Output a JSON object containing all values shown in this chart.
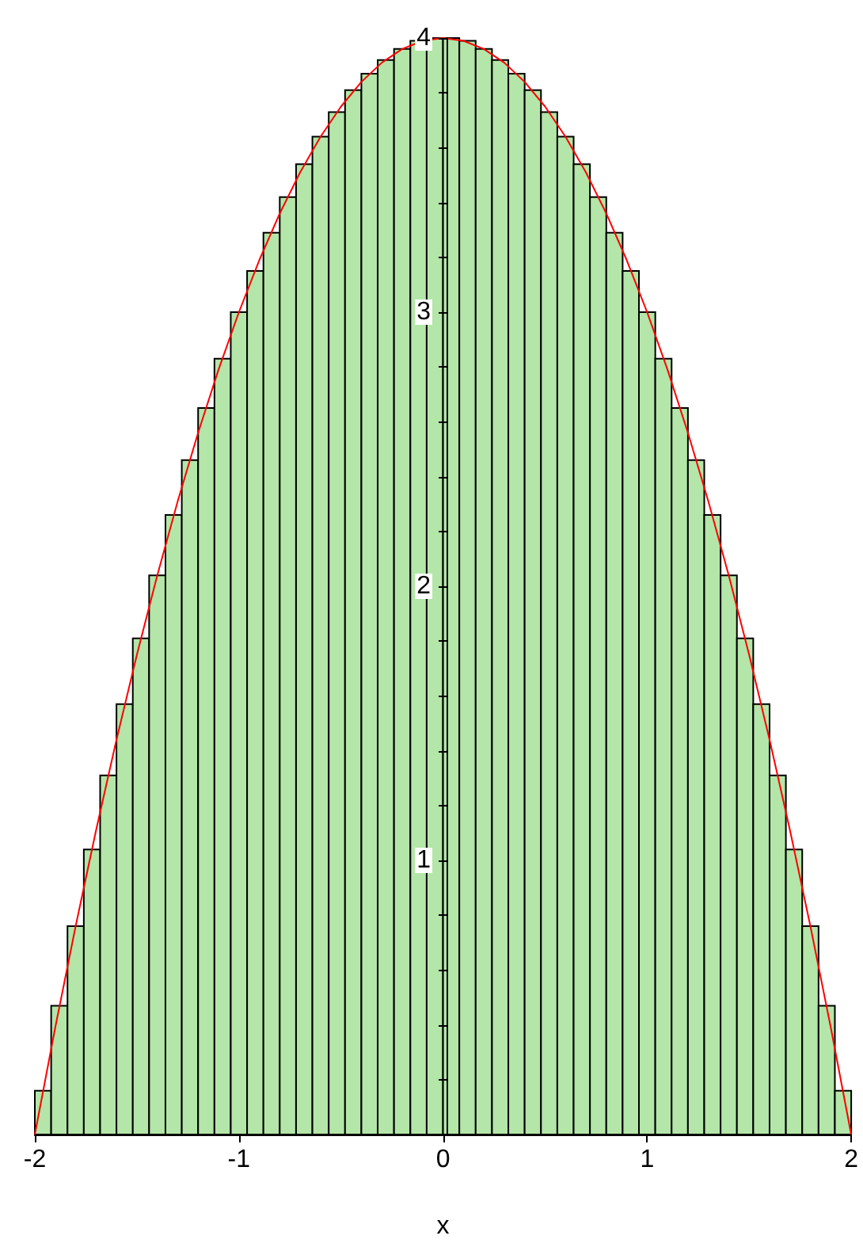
{
  "chart_data": {
    "type": "histogram",
    "xlabel": "x",
    "grid": false,
    "xlim": [
      -2,
      2
    ],
    "ylim": [
      0,
      4
    ],
    "xticks": [
      -2,
      -1,
      0,
      1,
      2
    ],
    "yticks": [
      {
        "value": 0.2,
        "label": null
      },
      {
        "value": 0.4,
        "label": null
      },
      {
        "value": 0.6,
        "label": null
      },
      {
        "value": 0.8,
        "label": null
      },
      1,
      {
        "value": 1.2,
        "label": null
      },
      {
        "value": 1.4,
        "label": null
      },
      {
        "value": 1.6,
        "label": null
      },
      {
        "value": 1.8,
        "label": null
      },
      2,
      {
        "value": 2.2,
        "label": null
      },
      {
        "value": 2.4,
        "label": null
      },
      {
        "value": 2.6,
        "label": null
      },
      {
        "value": 2.8,
        "label": null
      },
      3,
      {
        "value": 3.2,
        "label": null
      },
      {
        "value": 3.4,
        "label": null
      },
      {
        "value": 3.6,
        "label": null
      },
      {
        "value": 3.8,
        "label": null
      },
      4
    ],
    "series": [
      {
        "type": "histogram",
        "color": "#b3e6a8",
        "bins": [
          -2,
          -1.92,
          -1.84,
          -1.76,
          -1.68,
          -1.6,
          -1.52,
          -1.44,
          -1.36,
          -1.28,
          -1.2,
          -1.12,
          -1.04,
          -0.96,
          -0.88,
          -0.8,
          -0.72,
          -0.64,
          -0.56,
          -0.48,
          -0.4,
          -0.32,
          -0.24,
          -0.16,
          -0.08,
          0,
          0.08,
          0.16,
          0.24,
          0.32,
          0.4,
          0.48,
          0.56,
          0.64,
          0.72,
          0.8,
          0.88,
          0.96,
          1.04,
          1.12,
          1.2,
          1.28,
          1.36,
          1.44,
          1.52,
          1.6,
          1.68,
          1.76,
          1.84,
          1.92,
          2
        ],
        "values": [
          0.16,
          0.47,
          0.76,
          1.04,
          1.31,
          1.57,
          1.81,
          2.04,
          2.26,
          2.46,
          2.65,
          2.83,
          3.0,
          3.15,
          3.29,
          3.42,
          3.54,
          3.64,
          3.73,
          3.81,
          3.87,
          3.92,
          3.96,
          3.99,
          4.0,
          4.0,
          3.99,
          3.96,
          3.92,
          3.87,
          3.81,
          3.73,
          3.64,
          3.54,
          3.42,
          3.29,
          3.15,
          3.0,
          2.83,
          2.65,
          2.46,
          2.26,
          2.04,
          1.81,
          1.57,
          1.31,
          1.04,
          0.76,
          0.47,
          0.16
        ]
      },
      {
        "type": "line",
        "color": "#ff0000",
        "x": [
          -2,
          -1.9,
          -1.8,
          -1.7,
          -1.6,
          -1.5,
          -1.4,
          -1.3,
          -1.2,
          -1.1,
          -1,
          -0.9,
          -0.8,
          -0.7,
          -0.6,
          -0.5,
          -0.4,
          -0.3,
          -0.2,
          -0.1,
          0,
          0.1,
          0.2,
          0.3,
          0.4,
          0.5,
          0.6,
          0.7,
          0.8,
          0.9,
          1,
          1.1,
          1.2,
          1.3,
          1.4,
          1.5,
          1.6,
          1.7,
          1.8,
          1.9,
          2
        ],
        "values": [
          0,
          0.39,
          0.76,
          1.11,
          1.44,
          1.75,
          2.04,
          2.31,
          2.56,
          2.79,
          3,
          3.19,
          3.36,
          3.51,
          3.64,
          3.75,
          3.84,
          3.91,
          3.96,
          3.99,
          4,
          3.99,
          3.96,
          3.91,
          3.84,
          3.75,
          3.64,
          3.51,
          3.36,
          3.19,
          3,
          2.79,
          2.56,
          2.31,
          2.04,
          1.75,
          1.44,
          1.11,
          0.76,
          0.39,
          0
        ]
      }
    ]
  }
}
